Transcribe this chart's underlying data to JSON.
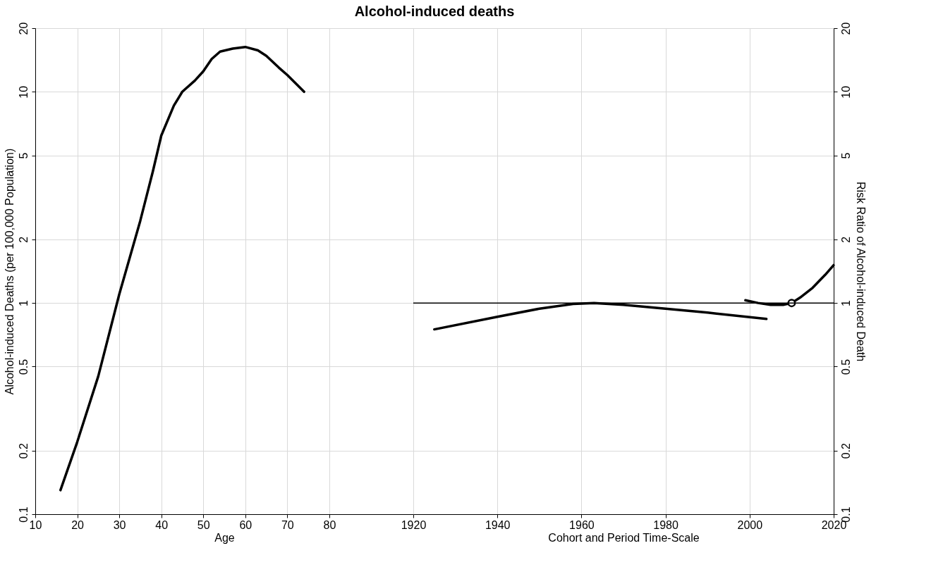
{
  "chart_data": [
    {
      "type": "line",
      "title": "Alcohol-induced deaths",
      "xlabel": "Age",
      "ylabel": "Alcohol-induced Deaths (per 100,000 Population)",
      "log": "y",
      "grid": true,
      "line_style": "solid",
      "xlim": [
        10,
        100
      ],
      "xticks": [
        10,
        20,
        30,
        40,
        50,
        60,
        70,
        80
      ],
      "ylim": [
        0.1,
        20
      ],
      "yticks": [
        0.1,
        0.2,
        0.5,
        1,
        2,
        5,
        10,
        20
      ],
      "series": [
        {
          "color": "#000000",
          "x": [
            16,
            20,
            25,
            30,
            35,
            38,
            40,
            43,
            45,
            48,
            50,
            52,
            54,
            57,
            60,
            63,
            65,
            68,
            70,
            74
          ],
          "values": [
            0.13,
            0.22,
            0.45,
            1.1,
            2.45,
            4.2,
            6.2,
            8.6,
            10,
            11.3,
            12.5,
            14.3,
            15.5,
            16,
            16.3,
            15.7,
            14.8,
            13,
            12,
            10
          ]
        }
      ]
    },
    {
      "type": "line",
      "xlabel": "Cohort and Period Time-Scale",
      "y2label": "Risk Ratio of Alcohol-induced Death",
      "log": "y2",
      "grid": true,
      "line_style": "solid",
      "xlim": [
        1920,
        2020
      ],
      "xticks": [
        1920,
        1940,
        1960,
        1980,
        2000,
        2020
      ],
      "y2lim": [
        0.1,
        20
      ],
      "y2ticks": [
        0.1,
        0.2,
        0.5,
        1,
        2,
        5,
        10,
        20
      ],
      "ref_lines": [
        {
          "axis": "y2",
          "value": 1,
          "color": "#000000"
        }
      ],
      "series": [
        {
          "color": "#000000",
          "axis": "y2",
          "x": [
            1925,
            1940,
            1950,
            1958,
            1963,
            1970,
            1980,
            1990,
            2004
          ],
          "values": [
            0.75,
            0.86,
            0.94,
            0.99,
            1.0,
            0.98,
            0.94,
            0.9,
            0.84
          ]
        },
        {
          "color": "#000000",
          "axis": "y2",
          "x": [
            1999,
            2002,
            2005,
            2008,
            2010,
            2012,
            2015,
            2018,
            2020
          ],
          "values": [
            1.03,
            1.0,
            0.98,
            0.98,
            1.0,
            1.06,
            1.18,
            1.36,
            1.51
          ]
        },
        {
          "type": "scatter",
          "marker": "circle",
          "color": "#000000",
          "axis": "y2",
          "x": [
            2010
          ],
          "values": [
            1.0
          ]
        }
      ]
    }
  ]
}
